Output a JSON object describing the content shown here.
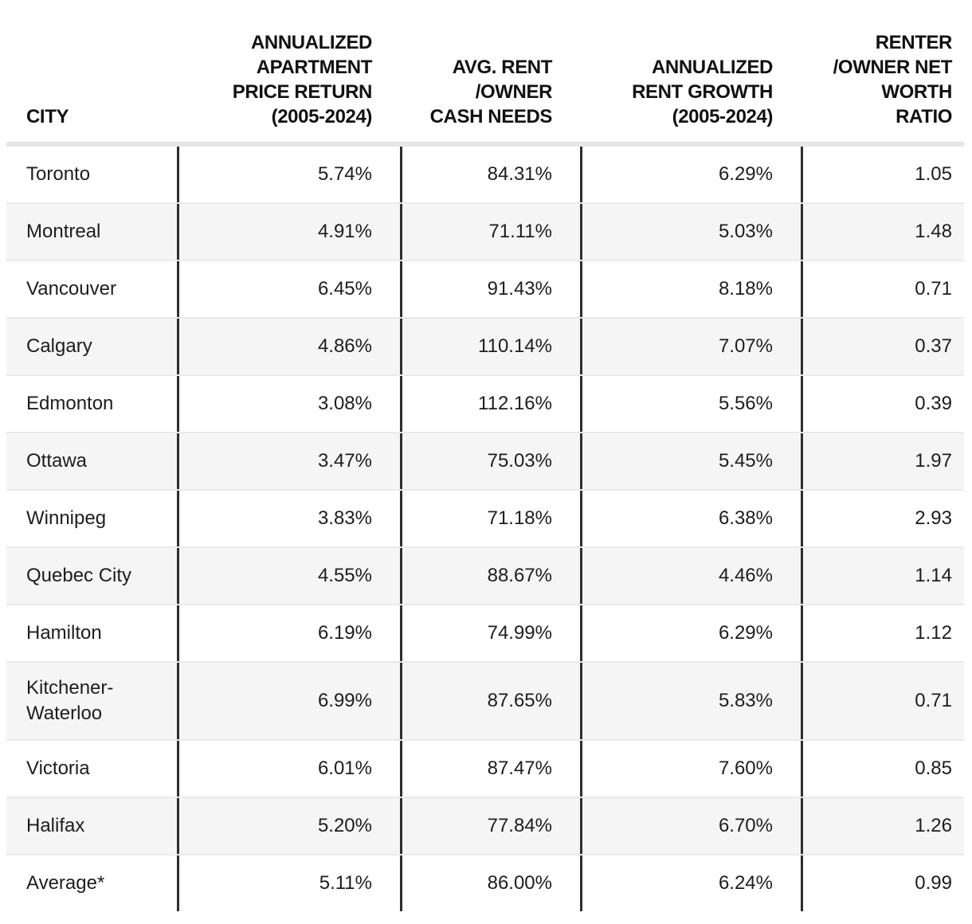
{
  "colors": {
    "row_alt_background": "#f5f5f6",
    "row_divider": "#e9eaeb",
    "header_separator": "#e4e6e8",
    "column_border": "#2e2e2e",
    "text": "#1d1d1d"
  },
  "chart_data": {
    "type": "table",
    "columns": [
      "CITY",
      "ANNUALIZED\nAPARTMENT\nPRICE RETURN\n(2005-2024)",
      "AVG. RENT\n/OWNER\nCASH NEEDS",
      "ANNUALIZED\nRENT GROWTH\n(2005-2024)",
      "RENTER\n/OWNER NET\nWORTH\nRATIO"
    ],
    "rows": [
      {
        "city": "Toronto",
        "price_return": "5.74%",
        "cash_needs": "84.31%",
        "rent_growth": "6.29%",
        "ratio": "1.05"
      },
      {
        "city": "Montreal",
        "price_return": "4.91%",
        "cash_needs": "71.11%",
        "rent_growth": "5.03%",
        "ratio": "1.48"
      },
      {
        "city": "Vancouver",
        "price_return": "6.45%",
        "cash_needs": "91.43%",
        "rent_growth": "8.18%",
        "ratio": "0.71"
      },
      {
        "city": "Calgary",
        "price_return": "4.86%",
        "cash_needs": "110.14%",
        "rent_growth": "7.07%",
        "ratio": "0.37"
      },
      {
        "city": "Edmonton",
        "price_return": "3.08%",
        "cash_needs": "112.16%",
        "rent_growth": "5.56%",
        "ratio": "0.39"
      },
      {
        "city": "Ottawa",
        "price_return": "3.47%",
        "cash_needs": "75.03%",
        "rent_growth": "5.45%",
        "ratio": "1.97"
      },
      {
        "city": "Winnipeg",
        "price_return": "3.83%",
        "cash_needs": "71.18%",
        "rent_growth": "6.38%",
        "ratio": "2.93"
      },
      {
        "city": "Quebec City",
        "price_return": "4.55%",
        "cash_needs": "88.67%",
        "rent_growth": "4.46%",
        "ratio": "1.14"
      },
      {
        "city": "Hamilton",
        "price_return": "6.19%",
        "cash_needs": "74.99%",
        "rent_growth": "6.29%",
        "ratio": "1.12"
      },
      {
        "city": "Kitchener-Waterloo",
        "price_return": "6.99%",
        "cash_needs": "87.65%",
        "rent_growth": "5.83%",
        "ratio": "0.71"
      },
      {
        "city": "Victoria",
        "price_return": "6.01%",
        "cash_needs": "87.47%",
        "rent_growth": "7.60%",
        "ratio": "0.85"
      },
      {
        "city": "Halifax",
        "price_return": "5.20%",
        "cash_needs": "77.84%",
        "rent_growth": "6.70%",
        "ratio": "1.26"
      },
      {
        "city": "Average*",
        "price_return": "5.11%",
        "cash_needs": "86.00%",
        "rent_growth": "6.24%",
        "ratio": "0.99"
      }
    ]
  }
}
